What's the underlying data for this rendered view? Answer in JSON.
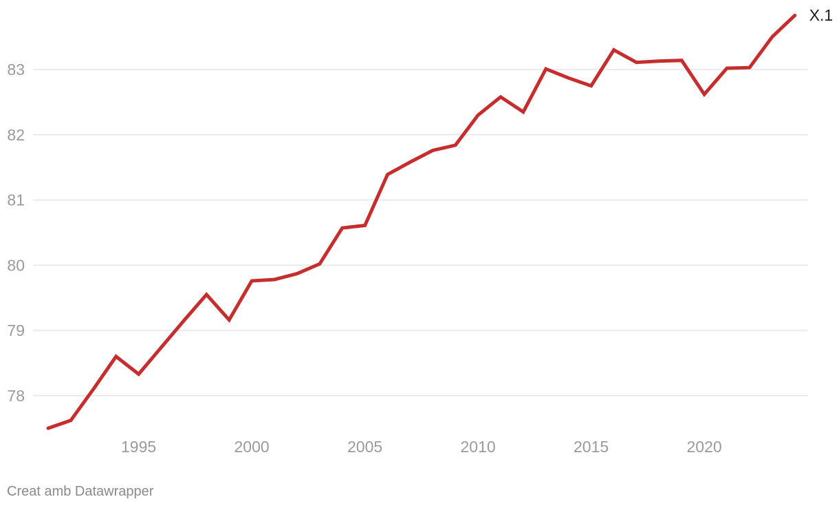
{
  "chart_data": {
    "type": "line",
    "title": "",
    "xlabel": "",
    "ylabel": "",
    "x": [
      1991,
      1992,
      1993,
      1994,
      1995,
      1996,
      1997,
      1998,
      1999,
      2000,
      2001,
      2002,
      2003,
      2004,
      2005,
      2006,
      2007,
      2008,
      2009,
      2010,
      2011,
      2012,
      2013,
      2014,
      2015,
      2016,
      2017,
      2018,
      2019,
      2020,
      2021,
      2022,
      2023,
      2024
    ],
    "series": [
      {
        "name": "X.1",
        "values": [
          77.5,
          77.62,
          78.1,
          78.6,
          78.33,
          78.74,
          79.15,
          79.55,
          79.16,
          79.76,
          79.78,
          79.87,
          80.02,
          80.57,
          80.61,
          81.39,
          81.58,
          81.76,
          81.84,
          82.3,
          82.58,
          82.35,
          83.01,
          82.87,
          82.75,
          83.3,
          83.11,
          83.13,
          83.14,
          82.62,
          83.02,
          83.03,
          83.5,
          83.83
        ]
      }
    ],
    "end_label": "X.1",
    "x_ticks": [
      1995,
      2000,
      2005,
      2010,
      2015,
      2020
    ],
    "y_ticks": [
      78,
      79,
      80,
      81,
      82,
      83
    ],
    "xlim": [
      1990.3,
      2024.6
    ],
    "ylim": [
      77.35,
      84.05
    ],
    "grid": "horizontal",
    "legend_position": "none-direct-end-label"
  },
  "colors": {
    "line": "#c62e2e",
    "grid": "#e5e5e5",
    "axis_text": "#9a9a9a",
    "end_label_text": "#1d1d1d",
    "footer_text": "#8a8a8a",
    "background": "#ffffff"
  },
  "footer": {
    "credit": "Creat amb Datawrapper"
  }
}
